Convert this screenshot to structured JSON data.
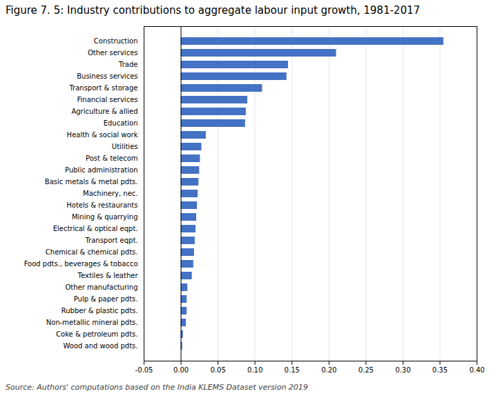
{
  "chart_data": {
    "type": "bar",
    "orientation": "horizontal",
    "title": "Figure 7. 5: Industry contributions to aggregate labour input growth, 1981-2017",
    "annotations": [
      "Source: Authors' computations based on the India KLEMS Dataset version 2019"
    ],
    "categories": [
      "Construction",
      "Other services",
      "Trade",
      "Business services",
      "Transport & storage",
      "Financial services",
      "Agriculture & allied",
      "Education",
      "Health & social work",
      "Utilities",
      "Post & telecom",
      "Public administration",
      "Basic metals & metal pdts.",
      "Machinery, nec.",
      "Hotels & restaurants",
      "Mining & quarrying",
      "Electrical & optical eqpt.",
      "Transport eqpt.",
      "Chemical & chemical pdts.",
      "Food pdts., beverages & tobacco",
      "Textiles & leather",
      "Other manufacturing",
      "Pulp & paper pdts.",
      "Rubber & plastic pdts.",
      "Non-metallic mineral pdts.",
      "Coke & petroleum pdts.",
      "Wood and wood pdts."
    ],
    "values": [
      0.355,
      0.21,
      0.145,
      0.143,
      0.11,
      0.09,
      0.088,
      0.087,
      0.034,
      0.028,
      0.026,
      0.025,
      0.024,
      0.023,
      0.022,
      0.021,
      0.02,
      0.019,
      0.018,
      0.017,
      0.015,
      0.009,
      0.008,
      0.008,
      0.007,
      0.003,
      0.002
    ],
    "color": "#4472c4",
    "xlim": [
      -0.05,
      0.4
    ],
    "xticks": [
      -0.05,
      {
        "value": 0.0,
        "label": "0.00"
      },
      0.05,
      {
        "value": 0.1,
        "label": "0.10"
      },
      0.15,
      {
        "value": 0.2,
        "label": "0.20"
      },
      0.25,
      {
        "value": 0.3,
        "label": "0.30"
      },
      0.35,
      {
        "value": 0.4,
        "label": "0.40"
      }
    ],
    "grid": true
  }
}
